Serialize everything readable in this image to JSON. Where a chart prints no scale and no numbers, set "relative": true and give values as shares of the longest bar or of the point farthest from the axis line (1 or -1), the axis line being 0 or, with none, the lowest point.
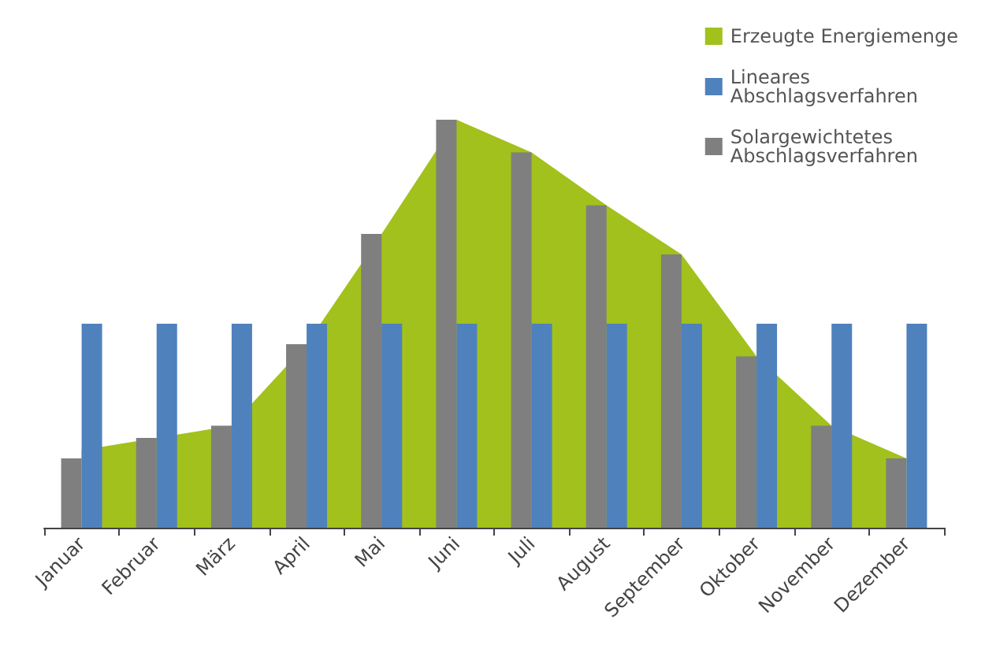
{
  "chart_data": {
    "type": "bar",
    "relative": true,
    "categories": [
      "Januar",
      "Februar",
      "März",
      "April",
      "Mai",
      "Juni",
      "Juli",
      "August",
      "September",
      "Oktober",
      "November",
      "Dezember"
    ],
    "series": [
      {
        "name": "Erzeugte Energiemenge",
        "type": "area",
        "color": "#a2c11c",
        "values": [
          0.19,
          0.22,
          0.25,
          0.45,
          0.72,
          1.0,
          0.92,
          0.79,
          0.67,
          0.42,
          0.25,
          0.17
        ]
      },
      {
        "name": "Lineares Abschlagsverfahren",
        "color": "#4f81bd",
        "values": [
          0.5,
          0.5,
          0.5,
          0.5,
          0.5,
          0.5,
          0.5,
          0.5,
          0.5,
          0.5,
          0.5,
          0.5
        ]
      },
      {
        "name": "Solargewichtetes Abschlagsverfahren",
        "color": "#7f7f7f",
        "values": [
          0.17,
          0.22,
          0.25,
          0.45,
          0.72,
          1.0,
          0.92,
          0.79,
          0.67,
          0.42,
          0.25,
          0.17
        ]
      }
    ],
    "legend": "top right",
    "grid": false
  }
}
